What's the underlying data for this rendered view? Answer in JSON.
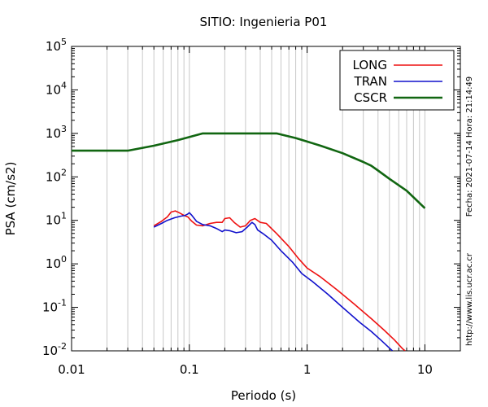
{
  "chart_data": {
    "type": "line",
    "title": "SITIO: Ingenieria P01",
    "xlabel": "Periodo (s)",
    "ylabel": "PSA (cm/s2)",
    "xscale": "log",
    "yscale": "log",
    "xlim": [
      0.01,
      20
    ],
    "ylim": [
      0.01,
      100000
    ],
    "grid": "vertical minor gridlines (log decades)",
    "legend_position": "top-right",
    "x_tick_labels": [
      {
        "value": 0.01,
        "label": "0.01"
      },
      {
        "value": 0.1,
        "label": "0.1"
      },
      {
        "value": 1,
        "label": "1"
      },
      {
        "value": 10,
        "label": "10"
      }
    ],
    "y_tick_labels": [
      {
        "value": 0.01,
        "base": "10",
        "exp": "-2"
      },
      {
        "value": 0.1,
        "base": "10",
        "exp": "-1"
      },
      {
        "value": 1,
        "base": "10",
        "exp": "0"
      },
      {
        "value": 10,
        "base": "10",
        "exp": "1"
      },
      {
        "value": 100,
        "base": "10",
        "exp": "2"
      },
      {
        "value": 1000,
        "base": "10",
        "exp": "3"
      },
      {
        "value": 10000,
        "base": "10",
        "exp": "4"
      },
      {
        "value": 100000,
        "base": "10",
        "exp": "5"
      }
    ],
    "series": [
      {
        "name": "LONG",
        "color": "#ee1111",
        "points": [
          [
            0.05,
            7.5
          ],
          [
            0.058,
            9.5
          ],
          [
            0.065,
            12
          ],
          [
            0.07,
            15.5
          ],
          [
            0.076,
            16.5
          ],
          [
            0.082,
            15
          ],
          [
            0.09,
            13
          ],
          [
            0.097,
            12
          ],
          [
            0.105,
            9.5
          ],
          [
            0.115,
            7.8
          ],
          [
            0.13,
            7.5
          ],
          [
            0.15,
            8.5
          ],
          [
            0.17,
            9
          ],
          [
            0.19,
            9
          ],
          [
            0.2,
            11
          ],
          [
            0.22,
            11.5
          ],
          [
            0.24,
            9
          ],
          [
            0.27,
            7
          ],
          [
            0.3,
            7.5
          ],
          [
            0.33,
            10
          ],
          [
            0.36,
            11
          ],
          [
            0.4,
            9
          ],
          [
            0.45,
            8.5
          ],
          [
            0.55,
            5
          ],
          [
            0.7,
            2.5
          ],
          [
            0.85,
            1.3
          ],
          [
            1,
            0.8
          ],
          [
            1.3,
            0.5
          ],
          [
            1.8,
            0.25
          ],
          [
            2.5,
            0.12
          ],
          [
            3.5,
            0.055
          ],
          [
            4.5,
            0.03
          ],
          [
            5.5,
            0.018
          ],
          [
            6.5,
            0.011
          ],
          [
            6.8,
            0.01
          ]
        ]
      },
      {
        "name": "TRAN",
        "color": "#1111cc",
        "points": [
          [
            0.05,
            7
          ],
          [
            0.058,
            8.5
          ],
          [
            0.065,
            10
          ],
          [
            0.075,
            11.5
          ],
          [
            0.085,
            12.5
          ],
          [
            0.092,
            13
          ],
          [
            0.097,
            14
          ],
          [
            0.1,
            15
          ],
          [
            0.105,
            13
          ],
          [
            0.115,
            9.5
          ],
          [
            0.13,
            8
          ],
          [
            0.15,
            7.5
          ],
          [
            0.17,
            6.5
          ],
          [
            0.19,
            5.5
          ],
          [
            0.2,
            6
          ],
          [
            0.22,
            5.8
          ],
          [
            0.25,
            5.2
          ],
          [
            0.28,
            5.5
          ],
          [
            0.31,
            7
          ],
          [
            0.34,
            9
          ],
          [
            0.36,
            8
          ],
          [
            0.38,
            6
          ],
          [
            0.42,
            5
          ],
          [
            0.5,
            3.5
          ],
          [
            0.6,
            2
          ],
          [
            0.75,
            1.1
          ],
          [
            0.9,
            0.6
          ],
          [
            1.1,
            0.4
          ],
          [
            1.5,
            0.2
          ],
          [
            2,
            0.1
          ],
          [
            2.8,
            0.045
          ],
          [
            3.5,
            0.028
          ],
          [
            4.3,
            0.017
          ],
          [
            5.1,
            0.011
          ],
          [
            5.3,
            0.01
          ]
        ]
      },
      {
        "name": "CSCR",
        "color": "#116611",
        "points": [
          [
            0.01,
            400
          ],
          [
            0.03,
            400
          ],
          [
            0.05,
            520
          ],
          [
            0.08,
            700
          ],
          [
            0.13,
            1000
          ],
          [
            0.55,
            1000
          ],
          [
            0.8,
            780
          ],
          [
            1,
            650
          ],
          [
            1.3,
            520
          ],
          [
            2,
            350
          ],
          [
            3,
            220
          ],
          [
            3.5,
            180
          ],
          [
            4,
            140
          ],
          [
            5,
            90
          ],
          [
            7,
            48
          ],
          [
            10,
            19
          ]
        ]
      }
    ]
  },
  "side_text": {
    "date_stamp": "Fecha: 2021-07-14 Hora: 21:14:49",
    "url": "http://www.lis.ucr.ac.cr"
  }
}
